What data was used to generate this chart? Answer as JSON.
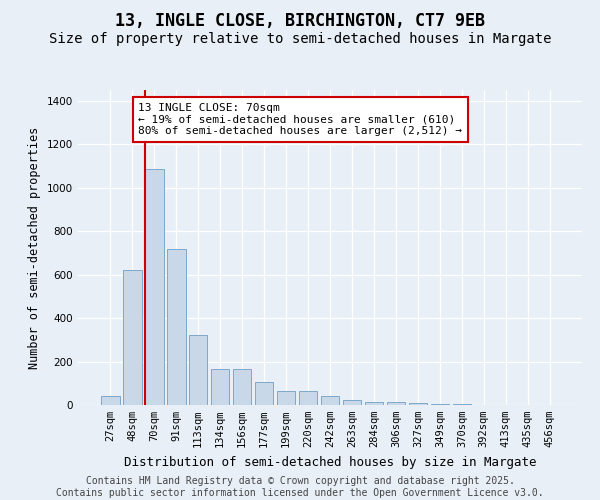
{
  "title1": "13, INGLE CLOSE, BIRCHINGTON, CT7 9EB",
  "title2": "Size of property relative to semi-detached houses in Margate",
  "xlabel": "Distribution of semi-detached houses by size in Margate",
  "ylabel": "Number of semi-detached properties",
  "categories": [
    "27sqm",
    "48sqm",
    "70sqm",
    "91sqm",
    "113sqm",
    "134sqm",
    "156sqm",
    "177sqm",
    "199sqm",
    "220sqm",
    "242sqm",
    "263sqm",
    "284sqm",
    "306sqm",
    "327sqm",
    "349sqm",
    "370sqm",
    "392sqm",
    "413sqm",
    "435sqm",
    "456sqm"
  ],
  "values": [
    40,
    620,
    1085,
    720,
    320,
    165,
    165,
    105,
    65,
    65,
    40,
    25,
    15,
    12,
    10,
    5,
    3,
    2,
    1,
    1,
    0
  ],
  "bar_color": "#c8d8e8",
  "bar_edge_color": "#7fa8c8",
  "property_bar_index": 2,
  "property_line_color": "#cc0000",
  "annotation_text": "13 INGLE CLOSE: 70sqm\n← 19% of semi-detached houses are smaller (610)\n80% of semi-detached houses are larger (2,512) →",
  "annotation_box_facecolor": "#ffffff",
  "annotation_box_edgecolor": "#cc0000",
  "ylim": [
    0,
    1450
  ],
  "yticks": [
    0,
    200,
    400,
    600,
    800,
    1000,
    1200,
    1400
  ],
  "background_color": "#e8eff6",
  "grid_color": "#ffffff",
  "footer_text": "Contains HM Land Registry data © Crown copyright and database right 2025.\nContains public sector information licensed under the Open Government Licence v3.0.",
  "title1_fontsize": 12,
  "title2_fontsize": 10,
  "xlabel_fontsize": 9,
  "ylabel_fontsize": 8.5,
  "tick_fontsize": 7.5,
  "annotation_fontsize": 8,
  "footer_fontsize": 7
}
